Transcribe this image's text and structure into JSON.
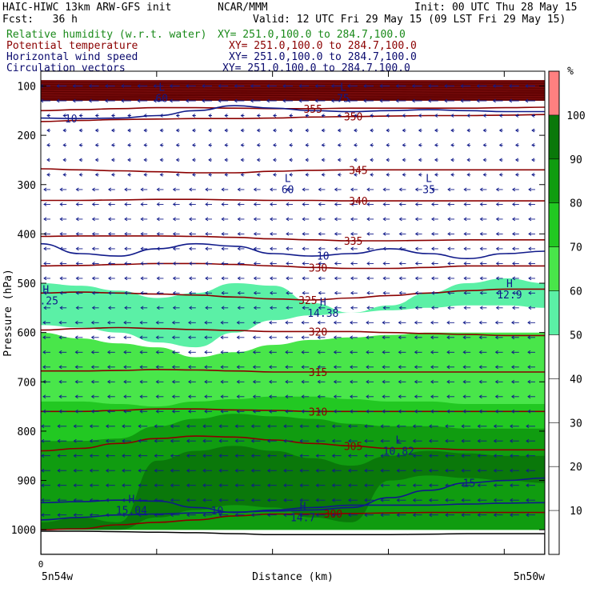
{
  "header": {
    "title": "HAIC-HIWC 13km ARW-GFS init",
    "org": "NCAR/MMM",
    "init": "Init: 00 UTC Thu 28 May 15",
    "fcst": "Fcst:   36 h",
    "valid": "Valid: 12 UTC Fri 29 May 15 (09 LST Fri 29 May 15)",
    "fields": [
      {
        "label": "Relative humidity (w.r.t. water)",
        "xy": "XY= 251.0,100.0 to 284.7,100.0",
        "color": "#1a8a1a"
      },
      {
        "label": "Potential temperature",
        "xy": "XY= 251.0,100.0 to 284.7,100.0",
        "color": "#8b0000"
      },
      {
        "label": "Horizontal wind speed",
        "xy": "XY= 251.0,100.0 to 284.7,100.0",
        "color": "#0a0a6e"
      },
      {
        "label": "Circulation vectors",
        "xy": "XY= 251.0,100.0 to 284.7,100.0",
        "color": "#0a0a6e"
      }
    ]
  },
  "colors": {
    "rh_fills": [
      "#ffffff",
      "#ffffff",
      "#ffffff",
      "#ffffff",
      "#ffffff",
      "#5bf0a6",
      "#49e64a",
      "#22c822",
      "#109c10",
      "#0a780a",
      "#ff8080"
    ],
    "theta": "#8b0000",
    "wind": "#101a8a",
    "axis": "#000000",
    "missing": "#ffffff"
  },
  "chart_data": {
    "type": "cross-section",
    "xlabel": "Distance (km)",
    "ylabel": "Pressure (hPa)",
    "x_ticks": [
      "0"
    ],
    "x_endpoints": [
      "5n54w",
      "5n50w"
    ],
    "y_ticks": [
      100,
      200,
      300,
      400,
      500,
      600,
      700,
      800,
      900,
      1000
    ],
    "ylim": [
      1050,
      70
    ],
    "colorbar": {
      "unit": "%",
      "levels": [
        10,
        20,
        30,
        40,
        50,
        60,
        70,
        80,
        90,
        100
      ],
      "labels": [
        "10",
        "20",
        "30",
        "40",
        "50",
        "60",
        "70",
        "80",
        "90",
        "100"
      ]
    },
    "rh_bands": [
      {
        "min": 50,
        "top_hpa": [
          500,
          505,
          515,
          530,
          520,
          500,
          505,
          540,
          560,
          545,
          520,
          500,
          490,
          500
        ],
        "bottom_hpa": [
          585,
          590,
          600,
          620,
          630,
          600,
          575,
          565,
          560,
          555,
          550,
          545,
          545,
          550
        ]
      },
      {
        "min": 60,
        "top_hpa": [
          600,
          612,
          622,
          630,
          650,
          640,
          625,
          615,
          610,
          605,
          600,
          600,
          600,
          600
        ],
        "bottom_hpa": [
          1000,
          1000,
          1000,
          1000,
          1000,
          1000,
          1000,
          1000,
          1000,
          1000,
          1000,
          1000,
          1000,
          1000
        ]
      },
      {
        "min": 70,
        "top_hpa": [
          740,
          740,
          745,
          750,
          740,
          735,
          730,
          730,
          735,
          740,
          740,
          745,
          745,
          745
        ],
        "bottom_hpa": [
          1000,
          1000,
          1000,
          1000,
          1000,
          1000,
          1000,
          1000,
          1000,
          1000,
          1000,
          1000,
          1000,
          1000
        ]
      },
      {
        "min": 80,
        "top_hpa": [
          820,
          820,
          815,
          790,
          775,
          765,
          770,
          775,
          785,
          790,
          790,
          795,
          795,
          795
        ],
        "bottom_hpa": [
          1000,
          1000,
          1000,
          1000,
          1000,
          1000,
          1000,
          1000,
          1000,
          1000,
          1000,
          1000,
          1000,
          1000
        ]
      },
      {
        "min": 90,
        "top_hpa": [
          985,
          975,
          985,
          860,
          840,
          830,
          840,
          855,
          870,
          850,
          840,
          845,
          850,
          850
        ],
        "bottom_hpa": [
          1000,
          1000,
          1000,
          975,
          960,
          950,
          955,
          975,
          985,
          900,
          890,
          895,
          900,
          905
        ]
      }
    ],
    "theta_contours": [
      {
        "label": "300",
        "hpa": [
          1000,
          998,
          990,
          985,
          980,
          972,
          968,
          968,
          967,
          966,
          965,
          965,
          965,
          965
        ]
      },
      {
        "label": "305",
        "hpa": [
          840,
          835,
          825,
          815,
          810,
          812,
          818,
          825,
          830,
          835,
          835,
          838,
          838,
          838
        ]
      },
      {
        "label": "310",
        "hpa": [
          760,
          760,
          758,
          755,
          755,
          757,
          758,
          760,
          760,
          760,
          760,
          760,
          760,
          760
        ]
      },
      {
        "label": "315",
        "hpa": [
          678,
          678,
          677,
          675,
          676,
          678,
          680,
          680,
          680,
          680,
          680,
          680,
          680,
          680
        ]
      },
      {
        "label": "320",
        "hpa": [
          595,
          592,
          590,
          592,
          594,
          596,
          598,
          598,
          598,
          600,
          602,
          604,
          606,
          606
        ]
      },
      {
        "label": "325",
        "hpa": [
          520,
          518,
          520,
          522,
          524,
          528,
          532,
          534,
          530,
          525,
          520,
          515,
          512,
          512
        ]
      },
      {
        "label": "330",
        "hpa": [
          465,
          464,
          462,
          460,
          460,
          462,
          465,
          468,
          470,
          470,
          468,
          465,
          465,
          465
        ]
      },
      {
        "label": "335",
        "hpa": [
          405,
          404,
          404,
          404,
          405,
          407,
          410,
          412,
          414,
          414,
          413,
          412,
          412,
          412
        ]
      },
      {
        "label": "340",
        "hpa": [
          332,
          332,
          331,
          330,
          330,
          331,
          332,
          332,
          333,
          333,
          333,
          333,
          333,
          333
        ]
      },
      {
        "label": "345",
        "hpa": [
          268,
          270,
          272,
          274,
          276,
          276,
          273,
          271,
          270,
          270,
          270,
          270,
          270,
          270
        ]
      },
      {
        "label": "350",
        "hpa": [
          172,
          170,
          168,
          167,
          166,
          166,
          165,
          163,
          162,
          161,
          160,
          160,
          159,
          158
        ]
      },
      {
        "label": "355",
        "hpa": [
          150,
          148,
          146,
          144,
          144,
          145,
          146,
          146,
          145,
          145,
          145,
          145,
          144,
          143
        ]
      }
    ],
    "stratosphere_theta_levels_hpa": [
      92,
      96,
      100,
      104,
      108,
      112,
      116,
      120,
      124,
      128
    ],
    "wind_contours": [
      {
        "label": "10",
        "hpa": [
          165,
          166,
          165,
          160,
          150,
          140,
          145,
          150,
          152,
          150,
          148,
          150,
          152,
          152
        ]
      },
      {
        "label": "10",
        "hpa": [
          420,
          440,
          445,
          430,
          420,
          425,
          440,
          445,
          440,
          430,
          440,
          450,
          440,
          435
        ]
      },
      {
        "label": "10",
        "hpa": [
          945,
          943,
          940,
          942,
          955,
          965,
          960,
          955,
          950,
          950,
          950,
          948,
          946,
          945
        ]
      },
      {
        "label": "15",
        "hpa": [
          980,
          975,
          970,
          968,
          966,
          964,
          962,
          960,
          955,
          935,
          920,
          905,
          900,
          895
        ]
      }
    ],
    "extrema": [
      {
        "type": "H",
        "value": "5.25",
        "x_frac": 0.01,
        "hpa": 520
      },
      {
        "type": "H",
        "value": "14.38",
        "x_frac": 0.56,
        "hpa": 545
      },
      {
        "type": "H",
        "value": "12.9",
        "x_frac": 0.93,
        "hpa": 508
      },
      {
        "type": "L",
        "value": "10.82",
        "x_frac": 0.71,
        "hpa": 825
      },
      {
        "type": "H",
        "value": "15.04",
        "x_frac": 0.18,
        "hpa": 945
      },
      {
        "type": "H",
        "value": "14.7",
        "x_frac": 0.52,
        "hpa": 960
      },
      {
        "type": "L",
        "value": "60",
        "x_frac": 0.49,
        "hpa": 295
      },
      {
        "type": "L",
        "value": "35",
        "x_frac": 0.77,
        "hpa": 295
      },
      {
        "type": "L",
        "value": "60",
        "x_frac": 0.24,
        "hpa": 110
      },
      {
        "type": "L",
        "value": "75",
        "x_frac": 0.6,
        "hpa": 110
      }
    ],
    "wind_vector_levels_hpa": [
      100,
      130,
      160,
      190,
      220,
      250,
      280,
      310,
      340,
      370,
      400,
      430,
      460,
      490,
      520,
      550,
      580,
      610,
      640,
      670,
      700,
      730,
      760,
      790,
      820,
      850,
      880,
      910,
      940,
      970
    ],
    "wind_vector_columns": 31
  }
}
